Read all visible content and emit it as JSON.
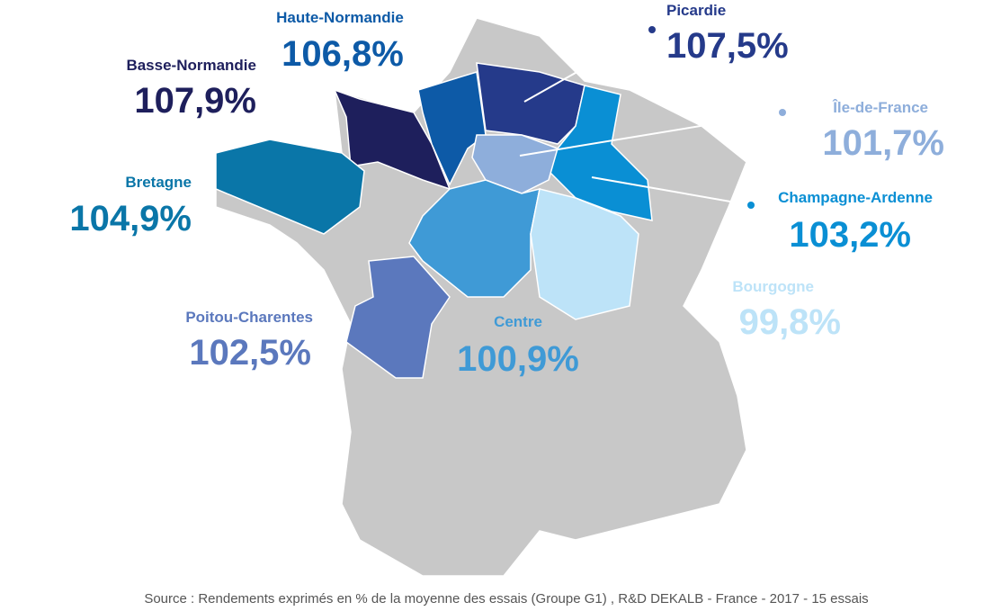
{
  "regions": [
    {
      "name": "Haute-Normandie",
      "value": "106,8%"
    },
    {
      "name": "Picardie",
      "value": "107,5%"
    },
    {
      "name": "Basse-Normandie",
      "value": "107,9%"
    },
    {
      "name": "Île-de-France",
      "value": "101,7%"
    },
    {
      "name": "Bretagne",
      "value": "104,9%"
    },
    {
      "name": "Champagne-Ardenne",
      "value": "103,2%"
    },
    {
      "name": "Bourgogne",
      "value": "99,8%"
    },
    {
      "name": "Poitou-Charentes",
      "value": "102,5%"
    },
    {
      "name": "Centre",
      "value": "100,9%"
    }
  ],
  "source": "Source : Rendements exprimés en % de la moyenne des essais (Groupe G1) , R&D DEKALB - France - 2017 - 15 essais"
}
